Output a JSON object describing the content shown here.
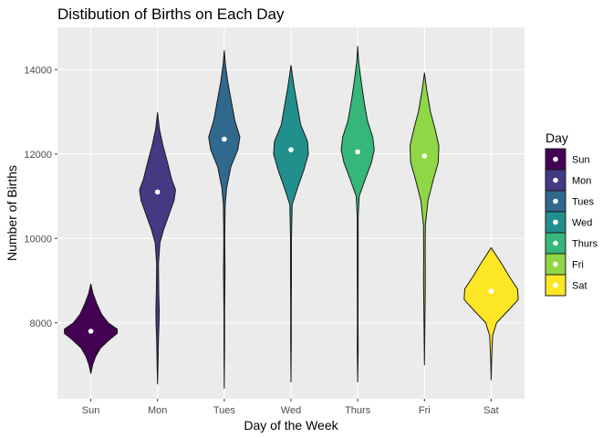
{
  "chart_data": {
    "type": "violin",
    "title": "Distibution of Births on Each Day",
    "xlabel": "Day of the Week",
    "ylabel": "Number of Births",
    "categories": [
      "Sun",
      "Mon",
      "Tues",
      "Wed",
      "Thurs",
      "Fri",
      "Sat"
    ],
    "ylim": [
      6200,
      15000
    ],
    "yticks": [
      8000,
      10000,
      12000,
      14000
    ],
    "ytick_labels": [
      "8000",
      "10000",
      "12000",
      "14000"
    ],
    "grid": true,
    "legend": {
      "title": "Day",
      "position": "right"
    },
    "series": [
      {
        "name": "Sun",
        "color": "#440154",
        "median": 7800,
        "min": 6800,
        "max": 8920,
        "density": [
          [
            6800,
            0.0
          ],
          [
            7000,
            0.06
          ],
          [
            7200,
            0.16
          ],
          [
            7400,
            0.32
          ],
          [
            7600,
            0.62
          ],
          [
            7750,
            0.88
          ],
          [
            7850,
            0.88
          ],
          [
            8000,
            0.58
          ],
          [
            8200,
            0.36
          ],
          [
            8450,
            0.2
          ],
          [
            8700,
            0.07
          ],
          [
            8920,
            0.0
          ]
        ]
      },
      {
        "name": "Mon",
        "color": "#443983",
        "median": 11100,
        "min": 6550,
        "max": 12980,
        "density": [
          [
            6550,
            0.0
          ],
          [
            7000,
            0.015
          ],
          [
            7600,
            0.03
          ],
          [
            8000,
            0.05
          ],
          [
            8300,
            0.055
          ],
          [
            8700,
            0.04
          ],
          [
            9400,
            0.03
          ],
          [
            9900,
            0.08
          ],
          [
            10200,
            0.2
          ],
          [
            10600,
            0.4
          ],
          [
            10900,
            0.55
          ],
          [
            11150,
            0.6
          ],
          [
            11400,
            0.47
          ],
          [
            11800,
            0.33
          ],
          [
            12200,
            0.18
          ],
          [
            12600,
            0.06
          ],
          [
            12980,
            0.0
          ]
        ]
      },
      {
        "name": "Tues",
        "color": "#31688e",
        "median": 12350,
        "min": 6450,
        "max": 14450,
        "density": [
          [
            6450,
            0.0
          ],
          [
            7400,
            0.01
          ],
          [
            8300,
            0.01
          ],
          [
            9200,
            0.025
          ],
          [
            10000,
            0.015
          ],
          [
            10800,
            0.03
          ],
          [
            11200,
            0.08
          ],
          [
            11700,
            0.22
          ],
          [
            12100,
            0.45
          ],
          [
            12400,
            0.52
          ],
          [
            12800,
            0.35
          ],
          [
            13300,
            0.22
          ],
          [
            13700,
            0.12
          ],
          [
            14100,
            0.04
          ],
          [
            14450,
            0.0
          ]
        ]
      },
      {
        "name": "Wed",
        "color": "#21908d",
        "median": 12100,
        "min": 6600,
        "max": 14100,
        "density": [
          [
            6600,
            0.0
          ],
          [
            7500,
            0.01
          ],
          [
            8400,
            0.01
          ],
          [
            9000,
            0.015
          ],
          [
            10000,
            0.015
          ],
          [
            10800,
            0.04
          ],
          [
            11200,
            0.22
          ],
          [
            11600,
            0.42
          ],
          [
            12000,
            0.58
          ],
          [
            12300,
            0.55
          ],
          [
            12700,
            0.32
          ],
          [
            13200,
            0.2
          ],
          [
            13600,
            0.1
          ],
          [
            14100,
            0.0
          ]
        ]
      },
      {
        "name": "Thurs",
        "color": "#35b779",
        "median": 12050,
        "min": 6600,
        "max": 14550,
        "density": [
          [
            6600,
            0.0
          ],
          [
            7400,
            0.015
          ],
          [
            8000,
            0.01
          ],
          [
            9300,
            0.015
          ],
          [
            10500,
            0.015
          ],
          [
            11000,
            0.05
          ],
          [
            11400,
            0.25
          ],
          [
            11800,
            0.46
          ],
          [
            12100,
            0.55
          ],
          [
            12400,
            0.5
          ],
          [
            12800,
            0.32
          ],
          [
            13300,
            0.2
          ],
          [
            13800,
            0.1
          ],
          [
            14200,
            0.03
          ],
          [
            14550,
            0.0
          ]
        ]
      },
      {
        "name": "Fri",
        "color": "#8fd744",
        "median": 11950,
        "min": 7000,
        "max": 13920,
        "density": [
          [
            7000,
            0.0
          ],
          [
            8000,
            0.015
          ],
          [
            9000,
            0.03
          ],
          [
            9600,
            0.025
          ],
          [
            10300,
            0.03
          ],
          [
            10900,
            0.12
          ],
          [
            11400,
            0.3
          ],
          [
            11800,
            0.46
          ],
          [
            12200,
            0.48
          ],
          [
            12600,
            0.35
          ],
          [
            13000,
            0.2
          ],
          [
            13500,
            0.08
          ],
          [
            13920,
            0.0
          ]
        ]
      },
      {
        "name": "Sat",
        "color": "#fde725",
        "median": 8750,
        "min": 6650,
        "max": 9780,
        "density": [
          [
            6650,
            0.0
          ],
          [
            7200,
            0.02
          ],
          [
            7700,
            0.05
          ],
          [
            8000,
            0.18
          ],
          [
            8300,
            0.58
          ],
          [
            8550,
            0.9
          ],
          [
            8800,
            0.88
          ],
          [
            9100,
            0.6
          ],
          [
            9400,
            0.35
          ],
          [
            9780,
            0.0
          ]
        ]
      }
    ]
  }
}
